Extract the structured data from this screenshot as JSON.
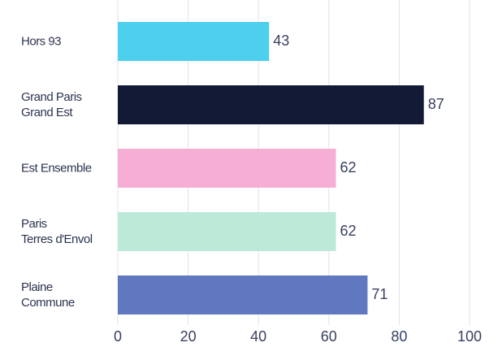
{
  "chart_data": {
    "type": "barh",
    "categories": [
      "Hors 93",
      "Grand Paris\nGrand Est",
      "Est Ensemble",
      "Paris\nTerres d'Envol",
      "Plaine\nCommune"
    ],
    "values": [
      43,
      87,
      62,
      62,
      71
    ],
    "colors": [
      "#4dcfee",
      "#121a35",
      "#f6aed4",
      "#bde9d9",
      "#5f78c0"
    ],
    "xlim": [
      0,
      100
    ],
    "xticks": [
      0,
      20,
      40,
      60,
      80,
      100
    ],
    "grid": true
  }
}
